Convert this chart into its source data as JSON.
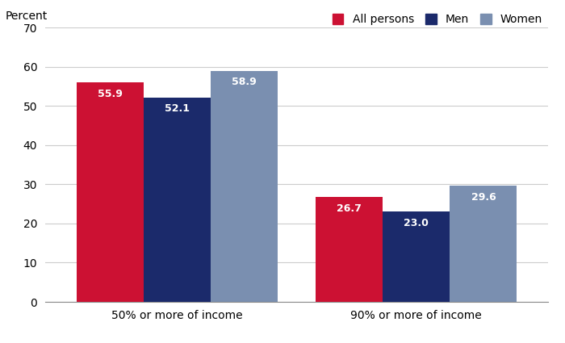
{
  "categories": [
    "50% or more of income",
    "90% or more of income"
  ],
  "series": {
    "All persons": [
      55.9,
      26.7
    ],
    "Men": [
      52.1,
      23.0
    ],
    "Women": [
      58.9,
      29.6
    ]
  },
  "colors": {
    "All persons": "#CC1133",
    "Men": "#1B2A6B",
    "Women": "#7A8FB0"
  },
  "legend_labels": [
    "All persons",
    "Men",
    "Women"
  ],
  "ylabel": "Percent",
  "ylim": [
    0,
    70
  ],
  "yticks": [
    0,
    10,
    20,
    30,
    40,
    50,
    60,
    70
  ],
  "bar_width": 0.28,
  "label_fontsize": 9,
  "axis_fontsize": 10,
  "legend_fontsize": 10,
  "background_color": "#FFFFFF",
  "grid_color": "#CCCCCC"
}
